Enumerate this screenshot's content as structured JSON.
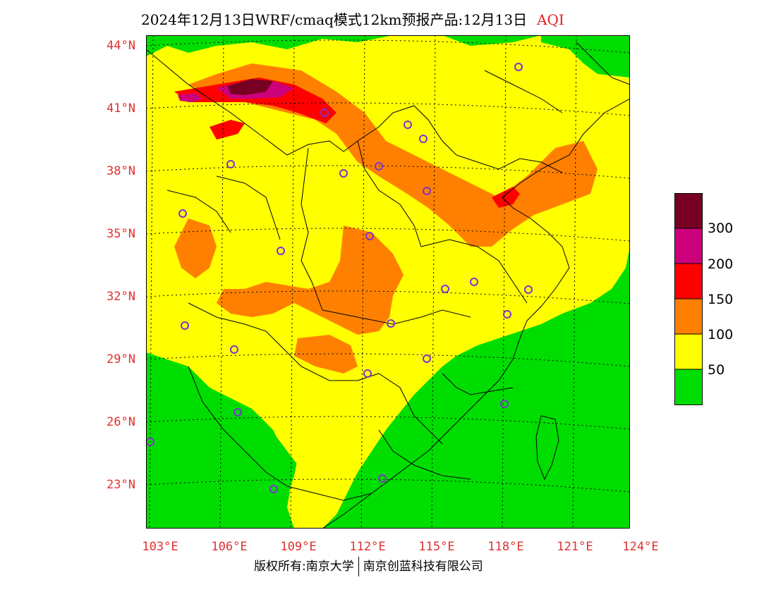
{
  "title": {
    "main": "2024年12月13日WRF/cmaq模式12km预报产品:12月13日",
    "variable": "AQI"
  },
  "axes": {
    "lat_labels": [
      "44°N",
      "41°N",
      "38°N",
      "35°N",
      "32°N",
      "29°N",
      "26°N",
      "23°N"
    ],
    "lon_labels": [
      "103°E",
      "106°E",
      "109°E",
      "112°E",
      "115°E",
      "118°E",
      "121°E",
      "124°E"
    ]
  },
  "legend": {
    "levels": [
      {
        "label": "",
        "color": "#00dd00"
      },
      {
        "label": "50",
        "color": "#ffff00"
      },
      {
        "label": "100",
        "color": "#ff8000"
      },
      {
        "label": "150",
        "color": "#ff0000"
      },
      {
        "label": "200",
        "color": "#cc007a"
      },
      {
        "label": "300",
        "color": "#770022"
      }
    ]
  },
  "footer": {
    "left": "版权所有:南京大学",
    "right": "南京创蓝科技有限公司"
  },
  "colors": {
    "label_red": "#e03030",
    "station_marker": "#8033cc",
    "good": "#00dd00",
    "moderate": "#ffff00",
    "usg": "#ff8000",
    "unhealthy": "#ff0000",
    "very_unhealthy": "#cc007a",
    "hazardous": "#770022"
  }
}
